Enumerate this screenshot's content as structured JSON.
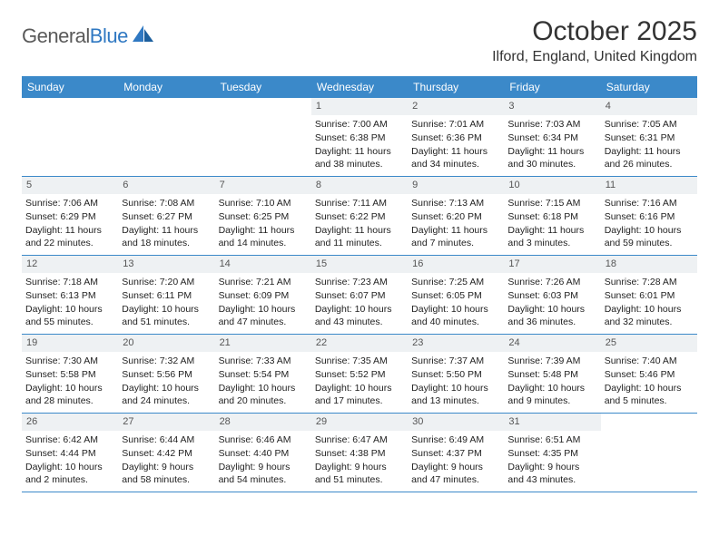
{
  "logo": {
    "text1": "General",
    "text2": "Blue"
  },
  "title": "October 2025",
  "location": "Ilford, England, United Kingdom",
  "colors": {
    "header_bg": "#3b89c9",
    "daynum_bg": "#eef1f3",
    "logo_blue": "#2f78c2"
  },
  "day_names": [
    "Sunday",
    "Monday",
    "Tuesday",
    "Wednesday",
    "Thursday",
    "Friday",
    "Saturday"
  ],
  "weeks": [
    [
      {
        "n": "",
        "lines": []
      },
      {
        "n": "",
        "lines": []
      },
      {
        "n": "",
        "lines": []
      },
      {
        "n": "1",
        "lines": [
          "Sunrise: 7:00 AM",
          "Sunset: 6:38 PM",
          "Daylight: 11 hours and 38 minutes."
        ]
      },
      {
        "n": "2",
        "lines": [
          "Sunrise: 7:01 AM",
          "Sunset: 6:36 PM",
          "Daylight: 11 hours and 34 minutes."
        ]
      },
      {
        "n": "3",
        "lines": [
          "Sunrise: 7:03 AM",
          "Sunset: 6:34 PM",
          "Daylight: 11 hours and 30 minutes."
        ]
      },
      {
        "n": "4",
        "lines": [
          "Sunrise: 7:05 AM",
          "Sunset: 6:31 PM",
          "Daylight: 11 hours and 26 minutes."
        ]
      }
    ],
    [
      {
        "n": "5",
        "lines": [
          "Sunrise: 7:06 AM",
          "Sunset: 6:29 PM",
          "Daylight: 11 hours and 22 minutes."
        ]
      },
      {
        "n": "6",
        "lines": [
          "Sunrise: 7:08 AM",
          "Sunset: 6:27 PM",
          "Daylight: 11 hours and 18 minutes."
        ]
      },
      {
        "n": "7",
        "lines": [
          "Sunrise: 7:10 AM",
          "Sunset: 6:25 PM",
          "Daylight: 11 hours and 14 minutes."
        ]
      },
      {
        "n": "8",
        "lines": [
          "Sunrise: 7:11 AM",
          "Sunset: 6:22 PM",
          "Daylight: 11 hours and 11 minutes."
        ]
      },
      {
        "n": "9",
        "lines": [
          "Sunrise: 7:13 AM",
          "Sunset: 6:20 PM",
          "Daylight: 11 hours and 7 minutes."
        ]
      },
      {
        "n": "10",
        "lines": [
          "Sunrise: 7:15 AM",
          "Sunset: 6:18 PM",
          "Daylight: 11 hours and 3 minutes."
        ]
      },
      {
        "n": "11",
        "lines": [
          "Sunrise: 7:16 AM",
          "Sunset: 6:16 PM",
          "Daylight: 10 hours and 59 minutes."
        ]
      }
    ],
    [
      {
        "n": "12",
        "lines": [
          "Sunrise: 7:18 AM",
          "Sunset: 6:13 PM",
          "Daylight: 10 hours and 55 minutes."
        ]
      },
      {
        "n": "13",
        "lines": [
          "Sunrise: 7:20 AM",
          "Sunset: 6:11 PM",
          "Daylight: 10 hours and 51 minutes."
        ]
      },
      {
        "n": "14",
        "lines": [
          "Sunrise: 7:21 AM",
          "Sunset: 6:09 PM",
          "Daylight: 10 hours and 47 minutes."
        ]
      },
      {
        "n": "15",
        "lines": [
          "Sunrise: 7:23 AM",
          "Sunset: 6:07 PM",
          "Daylight: 10 hours and 43 minutes."
        ]
      },
      {
        "n": "16",
        "lines": [
          "Sunrise: 7:25 AM",
          "Sunset: 6:05 PM",
          "Daylight: 10 hours and 40 minutes."
        ]
      },
      {
        "n": "17",
        "lines": [
          "Sunrise: 7:26 AM",
          "Sunset: 6:03 PM",
          "Daylight: 10 hours and 36 minutes."
        ]
      },
      {
        "n": "18",
        "lines": [
          "Sunrise: 7:28 AM",
          "Sunset: 6:01 PM",
          "Daylight: 10 hours and 32 minutes."
        ]
      }
    ],
    [
      {
        "n": "19",
        "lines": [
          "Sunrise: 7:30 AM",
          "Sunset: 5:58 PM",
          "Daylight: 10 hours and 28 minutes."
        ]
      },
      {
        "n": "20",
        "lines": [
          "Sunrise: 7:32 AM",
          "Sunset: 5:56 PM",
          "Daylight: 10 hours and 24 minutes."
        ]
      },
      {
        "n": "21",
        "lines": [
          "Sunrise: 7:33 AM",
          "Sunset: 5:54 PM",
          "Daylight: 10 hours and 20 minutes."
        ]
      },
      {
        "n": "22",
        "lines": [
          "Sunrise: 7:35 AM",
          "Sunset: 5:52 PM",
          "Daylight: 10 hours and 17 minutes."
        ]
      },
      {
        "n": "23",
        "lines": [
          "Sunrise: 7:37 AM",
          "Sunset: 5:50 PM",
          "Daylight: 10 hours and 13 minutes."
        ]
      },
      {
        "n": "24",
        "lines": [
          "Sunrise: 7:39 AM",
          "Sunset: 5:48 PM",
          "Daylight: 10 hours and 9 minutes."
        ]
      },
      {
        "n": "25",
        "lines": [
          "Sunrise: 7:40 AM",
          "Sunset: 5:46 PM",
          "Daylight: 10 hours and 5 minutes."
        ]
      }
    ],
    [
      {
        "n": "26",
        "lines": [
          "Sunrise: 6:42 AM",
          "Sunset: 4:44 PM",
          "Daylight: 10 hours and 2 minutes."
        ]
      },
      {
        "n": "27",
        "lines": [
          "Sunrise: 6:44 AM",
          "Sunset: 4:42 PM",
          "Daylight: 9 hours and 58 minutes."
        ]
      },
      {
        "n": "28",
        "lines": [
          "Sunrise: 6:46 AM",
          "Sunset: 4:40 PM",
          "Daylight: 9 hours and 54 minutes."
        ]
      },
      {
        "n": "29",
        "lines": [
          "Sunrise: 6:47 AM",
          "Sunset: 4:38 PM",
          "Daylight: 9 hours and 51 minutes."
        ]
      },
      {
        "n": "30",
        "lines": [
          "Sunrise: 6:49 AM",
          "Sunset: 4:37 PM",
          "Daylight: 9 hours and 47 minutes."
        ]
      },
      {
        "n": "31",
        "lines": [
          "Sunrise: 6:51 AM",
          "Sunset: 4:35 PM",
          "Daylight: 9 hours and 43 minutes."
        ]
      },
      {
        "n": "",
        "lines": []
      }
    ]
  ]
}
